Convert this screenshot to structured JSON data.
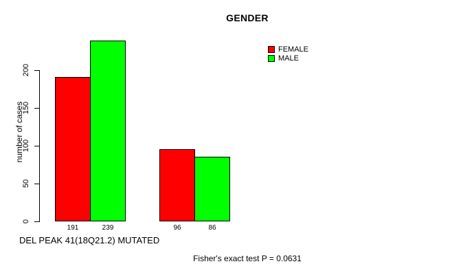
{
  "title": "GENDER",
  "legend": {
    "items": [
      {
        "label": "FEMALE",
        "color": "#FF0000"
      },
      {
        "label": "MALE",
        "color": "#00FF00"
      }
    ]
  },
  "y_axis": {
    "label": "number of cases",
    "ticks": [
      0,
      50,
      100,
      150,
      200
    ]
  },
  "x_axis": {
    "label": "DEL PEAK 41(18Q21.2) MUTATED"
  },
  "footer": {
    "stat_text": "Fisher's exact test P = 0.0631"
  },
  "chart_data": {
    "type": "bar",
    "title": "GENDER",
    "xlabel": "DEL PEAK 41(18Q21.2) MUTATED",
    "ylabel": "number of cases",
    "ylim": [
      0,
      248
    ],
    "yticks": [
      0,
      50,
      100,
      150,
      200
    ],
    "grid": false,
    "legend_position": "top-right",
    "categories": [
      "",
      ""
    ],
    "series": [
      {
        "name": "FEMALE",
        "color": "#FF0000",
        "values": [
          191,
          96
        ]
      },
      {
        "name": "MALE",
        "color": "#00FF00",
        "values": [
          239,
          86
        ]
      }
    ],
    "bar_value_labels": [
      "191",
      "239",
      "96",
      "86"
    ],
    "annotation": "Fisher's exact test P = 0.0631"
  }
}
